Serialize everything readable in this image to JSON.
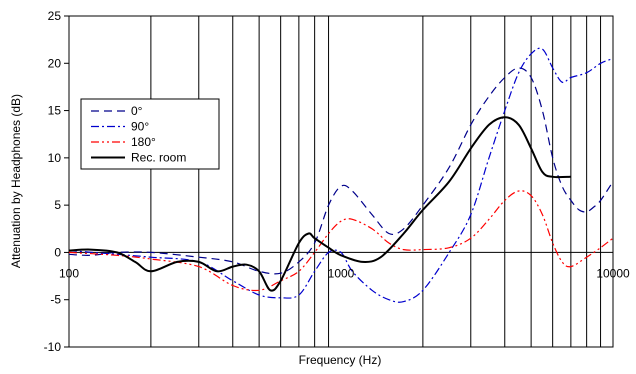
{
  "chart_data": {
    "type": "line",
    "title": "",
    "xlabel": "Frequency (Hz)",
    "ylabel": "Attenuation by Headphones (dB)",
    "xscale": "log",
    "xlim": [
      100,
      10000
    ],
    "ylim": [
      -10,
      25
    ],
    "yticks": [
      "-10",
      "-5",
      "0",
      "5",
      "10",
      "15",
      "20",
      "25"
    ],
    "xtick_labels": [
      {
        "x": 100,
        "label": "100"
      },
      {
        "x": 1000,
        "label": "1000"
      },
      {
        "x": 10000,
        "label": "10000"
      }
    ],
    "grid": "vertical minor lines at 200-900, 2000-9000",
    "legend_position": "left",
    "series": [
      {
        "name": "0°",
        "color": "#00008b",
        "dash": "8,5",
        "width": 1.2,
        "points": [
          [
            100,
            -0.2
          ],
          [
            120,
            -0.3
          ],
          [
            150,
            0
          ],
          [
            200,
            0
          ],
          [
            300,
            -0.5
          ],
          [
            400,
            -1
          ],
          [
            500,
            -2
          ],
          [
            600,
            -2.2
          ],
          [
            700,
            -1
          ],
          [
            800,
            1
          ],
          [
            900,
            5
          ],
          [
            1000,
            7
          ],
          [
            1100,
            6.5
          ],
          [
            1300,
            4
          ],
          [
            1500,
            2
          ],
          [
            1700,
            2.5
          ],
          [
            2000,
            5
          ],
          [
            2500,
            9
          ],
          [
            3000,
            13.5
          ],
          [
            3500,
            16.5
          ],
          [
            4000,
            18.5
          ],
          [
            4500,
            19.5
          ],
          [
            5000,
            18.5
          ],
          [
            5500,
            15
          ],
          [
            6000,
            10
          ],
          [
            6500,
            7
          ],
          [
            7000,
            5.5
          ],
          [
            7500,
            4.5
          ],
          [
            8000,
            4.3
          ],
          [
            8500,
            4.8
          ],
          [
            9000,
            5.5
          ],
          [
            10000,
            7.5
          ]
        ]
      },
      {
        "name": "90°",
        "color": "#0000cd",
        "dash": "8,3,2,3",
        "width": 1.2,
        "points": [
          [
            100,
            0.2
          ],
          [
            150,
            -0.2
          ],
          [
            200,
            -0.5
          ],
          [
            300,
            -1
          ],
          [
            400,
            -3
          ],
          [
            500,
            -4.5
          ],
          [
            600,
            -4.8
          ],
          [
            700,
            -4.5
          ],
          [
            800,
            -2
          ],
          [
            900,
            0
          ],
          [
            1000,
            0
          ],
          [
            1100,
            -2
          ],
          [
            1300,
            -4
          ],
          [
            1500,
            -5
          ],
          [
            1700,
            -5.2
          ],
          [
            2000,
            -4
          ],
          [
            2500,
            0
          ],
          [
            3000,
            4
          ],
          [
            3500,
            10
          ],
          [
            4000,
            15
          ],
          [
            4500,
            19
          ],
          [
            5000,
            21
          ],
          [
            5500,
            21.5
          ],
          [
            6000,
            19.5
          ],
          [
            6500,
            18
          ],
          [
            7000,
            18.5
          ],
          [
            8000,
            19
          ],
          [
            9000,
            20
          ],
          [
            10000,
            20.5
          ]
        ]
      },
      {
        "name": "180°",
        "color": "#ff0000",
        "dash": "8,3,2,3,2,3",
        "width": 1.2,
        "points": [
          [
            100,
            0
          ],
          [
            150,
            -0.3
          ],
          [
            200,
            -0.7
          ],
          [
            300,
            -1.5
          ],
          [
            400,
            -3.5
          ],
          [
            500,
            -4
          ],
          [
            600,
            -3
          ],
          [
            700,
            -2
          ],
          [
            800,
            0
          ],
          [
            900,
            2
          ],
          [
            1000,
            3.3
          ],
          [
            1100,
            3.5
          ],
          [
            1300,
            2.5
          ],
          [
            1500,
            1
          ],
          [
            1700,
            0.3
          ],
          [
            2000,
            0.3
          ],
          [
            2500,
            0.5
          ],
          [
            3000,
            1.5
          ],
          [
            3500,
            3.5
          ],
          [
            4000,
            5.5
          ],
          [
            4500,
            6.5
          ],
          [
            5000,
            6
          ],
          [
            5500,
            4
          ],
          [
            6000,
            1
          ],
          [
            6500,
            -1
          ],
          [
            7000,
            -1.5
          ],
          [
            8000,
            -0.5
          ],
          [
            9000,
            0.5
          ],
          [
            10000,
            1.5
          ]
        ]
      },
      {
        "name": "Rec. room",
        "color": "#000000",
        "dash": "",
        "width": 2,
        "points": [
          [
            100,
            0.2
          ],
          [
            120,
            0.3
          ],
          [
            150,
            0
          ],
          [
            175,
            -1
          ],
          [
            200,
            -2
          ],
          [
            250,
            -1
          ],
          [
            300,
            -1
          ],
          [
            350,
            -2
          ],
          [
            400,
            -1.5
          ],
          [
            450,
            -1.3
          ],
          [
            500,
            -2
          ],
          [
            550,
            -4
          ],
          [
            600,
            -3
          ],
          [
            700,
            1
          ],
          [
            760,
            2
          ],
          [
            800,
            1.5
          ],
          [
            900,
            0.5
          ],
          [
            1000,
            -0.3
          ],
          [
            1200,
            -1
          ],
          [
            1400,
            -0.5
          ],
          [
            1700,
            2
          ],
          [
            2000,
            4.5
          ],
          [
            2500,
            7.5
          ],
          [
            3000,
            11
          ],
          [
            3500,
            13.5
          ],
          [
            4000,
            14.3
          ],
          [
            4500,
            13.5
          ],
          [
            5000,
            11
          ],
          [
            5500,
            8.5
          ],
          [
            6000,
            8
          ],
          [
            7000,
            8
          ]
        ]
      }
    ]
  }
}
